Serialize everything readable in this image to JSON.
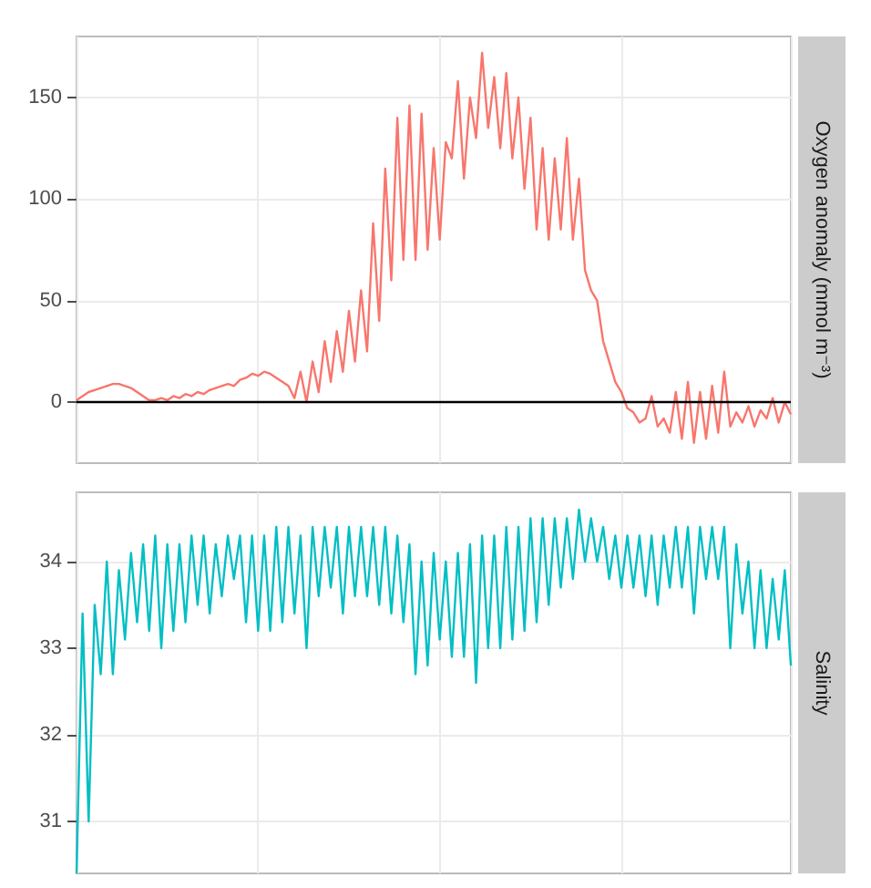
{
  "chart_data": [
    {
      "type": "line",
      "ylabel": "Oxygen anomaly (mmol m⁻³)",
      "categories": [
        null,
        null,
        null,
        null,
        null,
        null,
        null,
        null,
        null,
        null,
        null,
        null,
        null,
        null,
        null,
        null,
        null,
        null,
        null,
        null,
        null,
        null,
        null,
        null,
        null,
        null,
        null,
        null,
        null,
        null,
        null,
        null,
        null,
        null,
        null,
        null,
        null,
        null,
        null,
        null,
        null,
        null,
        null,
        null,
        null,
        null,
        null,
        null,
        null,
        null,
        null,
        null,
        null,
        null,
        null,
        null,
        null,
        null,
        null,
        null,
        null,
        null,
        null,
        null,
        null,
        null,
        null,
        null,
        null,
        null,
        null,
        null,
        null,
        null,
        null,
        null,
        null,
        null,
        null,
        null,
        null,
        null,
        null,
        null,
        null,
        null,
        null,
        null,
        null,
        null,
        null,
        null,
        null,
        null,
        null,
        null,
        null,
        null,
        null,
        null,
        null,
        null,
        null,
        null,
        null,
        null,
        null,
        null,
        null,
        null,
        null,
        null,
        null,
        null,
        null,
        null,
        null,
        null,
        null
      ],
      "series": [
        {
          "color": "#f8766d",
          "values": [
            1,
            3,
            5,
            6,
            7,
            8,
            9,
            9,
            8,
            7,
            5,
            3,
            1,
            1,
            2,
            1,
            3,
            2,
            4,
            3,
            5,
            4,
            6,
            7,
            8,
            9,
            8,
            11,
            12,
            14,
            13,
            15,
            14,
            12,
            10,
            8,
            2,
            15,
            0,
            20,
            5,
            30,
            10,
            35,
            15,
            45,
            20,
            55,
            25,
            88,
            40,
            115,
            60,
            140,
            70,
            146,
            70,
            142,
            75,
            125,
            80,
            128,
            120,
            158,
            110,
            150,
            130,
            172,
            135,
            160,
            125,
            162,
            120,
            150,
            105,
            140,
            85,
            125,
            80,
            120,
            85,
            130,
            80,
            110,
            65,
            55,
            50,
            30,
            20,
            10,
            5,
            -3,
            -5,
            -10,
            -8,
            3,
            -12,
            -8,
            -15,
            5,
            -18,
            10,
            -20,
            5,
            -18,
            8,
            -15,
            15,
            -12,
            -5,
            -10,
            -2,
            -12,
            -4,
            -8,
            2,
            -10,
            0,
            -6
          ]
        }
      ],
      "ylim": [
        -30,
        180
      ],
      "yticks": [
        0,
        50,
        100,
        150
      ],
      "grid": true,
      "tick_labels": "y",
      "ref_lines": [
        {
          "axis": "y",
          "value": 0,
          "color": "#000000"
        }
      ]
    },
    {
      "type": "line",
      "ylabel": "Salinity",
      "categories": [
        null,
        null,
        null,
        null,
        null,
        null,
        null,
        null,
        null,
        null,
        null,
        null,
        null,
        null,
        null,
        null,
        null,
        null,
        null,
        null,
        null,
        null,
        null,
        null,
        null,
        null,
        null,
        null,
        null,
        null,
        null,
        null,
        null,
        null,
        null,
        null,
        null,
        null,
        null,
        null,
        null,
        null,
        null,
        null,
        null,
        null,
        null,
        null,
        null,
        null,
        null,
        null,
        null,
        null,
        null,
        null,
        null,
        null,
        null,
        null,
        null,
        null,
        null,
        null,
        null,
        null,
        null,
        null,
        null,
        null,
        null,
        null,
        null,
        null,
        null,
        null,
        null,
        null,
        null,
        null,
        null,
        null,
        null,
        null,
        null,
        null,
        null,
        null,
        null,
        null,
        null,
        null,
        null,
        null,
        null,
        null,
        null,
        null,
        null,
        null,
        null,
        null,
        null,
        null,
        null,
        null,
        null,
        null,
        null,
        null,
        null,
        null,
        null,
        null,
        null,
        null,
        null,
        null,
        null
      ],
      "series": [
        {
          "color": "#00bfc4",
          "values": [
            30.4,
            33.4,
            31.0,
            33.5,
            32.7,
            34.0,
            32.7,
            33.9,
            33.1,
            34.1,
            33.3,
            34.2,
            33.2,
            34.3,
            33.0,
            34.2,
            33.2,
            34.2,
            33.3,
            34.3,
            33.5,
            34.3,
            33.4,
            34.2,
            33.6,
            34.3,
            33.8,
            34.3,
            33.3,
            34.3,
            33.2,
            34.3,
            33.2,
            34.4,
            33.3,
            34.4,
            33.4,
            34.3,
            33.0,
            34.4,
            33.6,
            34.4,
            33.7,
            34.4,
            33.4,
            34.4,
            33.6,
            34.4,
            33.6,
            34.4,
            33.5,
            34.4,
            33.4,
            34.3,
            33.3,
            34.2,
            32.7,
            34.0,
            32.8,
            34.1,
            33.1,
            34.0,
            32.9,
            34.1,
            32.9,
            34.2,
            32.6,
            34.3,
            33.0,
            34.3,
            33.0,
            34.4,
            33.1,
            34.4,
            33.2,
            34.5,
            33.3,
            34.5,
            33.5,
            34.5,
            33.7,
            34.5,
            33.8,
            34.6,
            34.0,
            34.5,
            34.0,
            34.4,
            33.8,
            34.3,
            33.7,
            34.3,
            33.7,
            34.3,
            33.6,
            34.3,
            33.5,
            34.3,
            33.7,
            34.4,
            33.7,
            34.4,
            33.4,
            34.4,
            33.8,
            34.4,
            33.8,
            34.4,
            33.0,
            34.2,
            33.4,
            34.0,
            33.0,
            33.9,
            33.0,
            33.8,
            33.1,
            33.9,
            32.8
          ]
        }
      ],
      "ylim": [
        30.4,
        34.8
      ],
      "yticks": [
        31,
        32,
        33,
        34
      ],
      "grid": true,
      "tick_labels": "y"
    }
  ]
}
